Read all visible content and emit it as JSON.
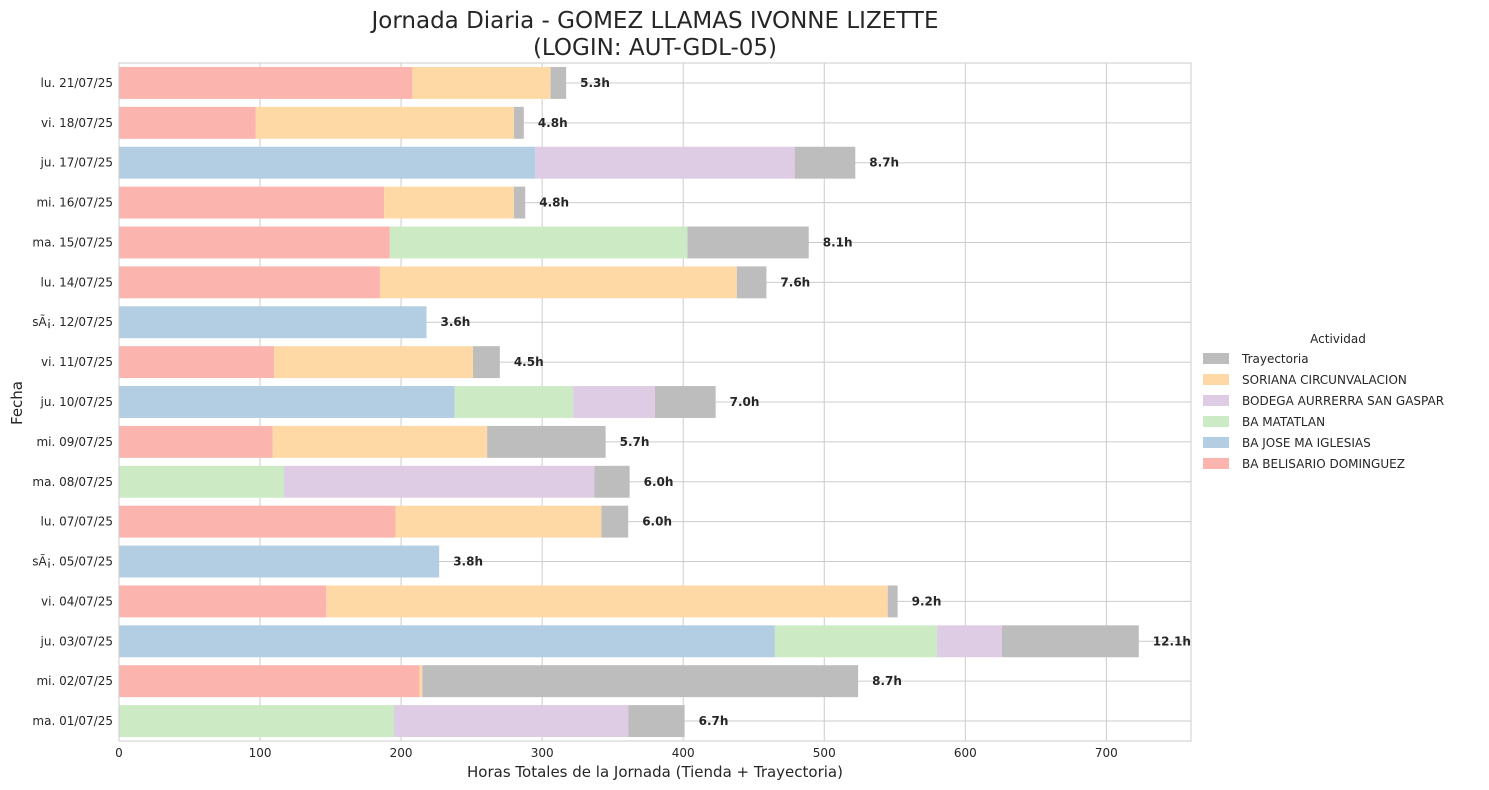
{
  "chart_data": {
    "type": "bar",
    "orientation": "horizontal",
    "stacked": true,
    "title": [
      "Jornada Diaria - GOMEZ LLAMAS IVONNE LIZETTE",
      "(LOGIN: AUT-GDL-05)"
    ],
    "xlabel": "Horas Totales de la Jornada (Tienda + Trayectoria)",
    "ylabel": "Fecha",
    "xlim": [
      0,
      760
    ],
    "xticks": [
      0,
      100,
      200,
      300,
      400,
      500,
      600,
      700
    ],
    "grid": true,
    "legend": {
      "title": "Actividad",
      "placement": "right",
      "order": [
        "Trayectoria",
        "SORIANA CIRCUNVALACION",
        "BODEGA AURRERRA SAN GASPAR",
        "BA MATATLAN",
        "BA JOSE MA IGLESIAS",
        "BA BELISARIO DOMINGUEZ"
      ]
    },
    "colors": {
      "BA BELISARIO DOMINGUEZ": "#fbb4ae",
      "BA JOSE MA IGLESIAS": "#b3cde3",
      "BA MATATLAN": "#ccebc5",
      "BODEGA AURRERRA SAN GASPAR": "#decbe4",
      "SORIANA CIRCUNVALACION": "#fed9a6",
      "Trayectoria": "#bdbdbd"
    },
    "rows": [
      {
        "date": "lu. 21/07/25",
        "total_label": "5.3h",
        "segments": [
          {
            "series": "BA BELISARIO DOMINGUEZ",
            "value": 208
          },
          {
            "series": "SORIANA CIRCUNVALACION",
            "value": 98
          },
          {
            "series": "Trayectoria",
            "value": 11
          }
        ]
      },
      {
        "date": "vi. 18/07/25",
        "total_label": "4.8h",
        "segments": [
          {
            "series": "BA BELISARIO DOMINGUEZ",
            "value": 97
          },
          {
            "series": "SORIANA CIRCUNVALACION",
            "value": 183
          },
          {
            "series": "Trayectoria",
            "value": 7
          }
        ]
      },
      {
        "date": "ju. 17/07/25",
        "total_label": "8.7h",
        "segments": [
          {
            "series": "BA JOSE MA IGLESIAS",
            "value": 295
          },
          {
            "series": "BODEGA AURRERRA SAN GASPAR",
            "value": 184
          },
          {
            "series": "Trayectoria",
            "value": 43
          }
        ]
      },
      {
        "date": "mi. 16/07/25",
        "total_label": "4.8h",
        "segments": [
          {
            "series": "BA BELISARIO DOMINGUEZ",
            "value": 188
          },
          {
            "series": "SORIANA CIRCUNVALACION",
            "value": 92
          },
          {
            "series": "Trayectoria",
            "value": 8
          }
        ]
      },
      {
        "date": "ma. 15/07/25",
        "total_label": "8.1h",
        "segments": [
          {
            "series": "BA BELISARIO DOMINGUEZ",
            "value": 192
          },
          {
            "series": "BA MATATLAN",
            "value": 211
          },
          {
            "series": "Trayectoria",
            "value": 86
          }
        ]
      },
      {
        "date": "lu. 14/07/25",
        "total_label": "7.6h",
        "segments": [
          {
            "series": "BA BELISARIO DOMINGUEZ",
            "value": 185
          },
          {
            "series": "SORIANA CIRCUNVALACION",
            "value": 253
          },
          {
            "series": "Trayectoria",
            "value": 21
          }
        ]
      },
      {
        "date": "sÃ¡. 12/07/25",
        "total_label": "3.6h",
        "segments": [
          {
            "series": "BA JOSE MA IGLESIAS",
            "value": 218
          }
        ]
      },
      {
        "date": "vi. 11/07/25",
        "total_label": "4.5h",
        "segments": [
          {
            "series": "BA BELISARIO DOMINGUEZ",
            "value": 110
          },
          {
            "series": "SORIANA CIRCUNVALACION",
            "value": 141
          },
          {
            "series": "Trayectoria",
            "value": 19
          }
        ]
      },
      {
        "date": "ju. 10/07/25",
        "total_label": "7.0h",
        "segments": [
          {
            "series": "BA JOSE MA IGLESIAS",
            "value": 238
          },
          {
            "series": "BA MATATLAN",
            "value": 84
          },
          {
            "series": "BODEGA AURRERRA SAN GASPAR",
            "value": 58
          },
          {
            "series": "Trayectoria",
            "value": 43
          }
        ]
      },
      {
        "date": "mi. 09/07/25",
        "total_label": "5.7h",
        "segments": [
          {
            "series": "BA BELISARIO DOMINGUEZ",
            "value": 109
          },
          {
            "series": "SORIANA CIRCUNVALACION",
            "value": 152
          },
          {
            "series": "Trayectoria",
            "value": 84
          }
        ]
      },
      {
        "date": "ma. 08/07/25",
        "total_label": "6.0h",
        "segments": [
          {
            "series": "BA MATATLAN",
            "value": 117
          },
          {
            "series": "BODEGA AURRERRA SAN GASPAR",
            "value": 220
          },
          {
            "series": "Trayectoria",
            "value": 25
          }
        ]
      },
      {
        "date": "lu. 07/07/25",
        "total_label": "6.0h",
        "segments": [
          {
            "series": "BA BELISARIO DOMINGUEZ",
            "value": 196
          },
          {
            "series": "SORIANA CIRCUNVALACION",
            "value": 146
          },
          {
            "series": "Trayectoria",
            "value": 19
          }
        ]
      },
      {
        "date": "sÃ¡. 05/07/25",
        "total_label": "3.8h",
        "segments": [
          {
            "series": "BA JOSE MA IGLESIAS",
            "value": 227
          }
        ]
      },
      {
        "date": "vi. 04/07/25",
        "total_label": "9.2h",
        "segments": [
          {
            "series": "BA BELISARIO DOMINGUEZ",
            "value": 147
          },
          {
            "series": "SORIANA CIRCUNVALACION",
            "value": 398
          },
          {
            "series": "Trayectoria",
            "value": 7
          }
        ]
      },
      {
        "date": "ju. 03/07/25",
        "total_label": "12.1h",
        "segments": [
          {
            "series": "BA JOSE MA IGLESIAS",
            "value": 465
          },
          {
            "series": "BA MATATLAN",
            "value": 115
          },
          {
            "series": "BODEGA AURRERRA SAN GASPAR",
            "value": 46
          },
          {
            "series": "Trayectoria",
            "value": 97
          }
        ]
      },
      {
        "date": "mi. 02/07/25",
        "total_label": "8.7h",
        "segments": [
          {
            "series": "BA BELISARIO DOMINGUEZ",
            "value": 213
          },
          {
            "series": "SORIANA CIRCUNVALACION",
            "value": 2
          },
          {
            "series": "Trayectoria",
            "value": 309
          }
        ]
      },
      {
        "date": "ma. 01/07/25",
        "total_label": "6.7h",
        "segments": [
          {
            "series": "BA MATATLAN",
            "value": 195
          },
          {
            "series": "BODEGA AURRERRA SAN GASPAR",
            "value": 166
          },
          {
            "series": "Trayectoria",
            "value": 40
          }
        ]
      }
    ]
  }
}
